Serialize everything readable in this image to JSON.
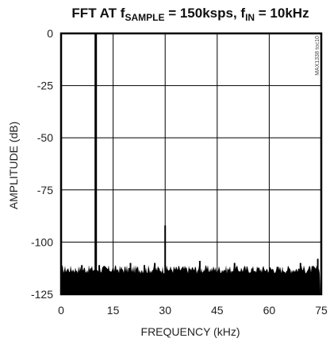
{
  "chart_data": {
    "type": "line",
    "title": "FFT AT f",
    "title_parts": [
      {
        "text": "FFT AT f",
        "style": "normal"
      },
      {
        "text": "SAMPLE",
        "style": "sub"
      },
      {
        "text": " = 150ksps, f",
        "style": "normal"
      },
      {
        "text": "IN",
        "style": "sub"
      },
      {
        "text": " = 10kHz",
        "style": "normal"
      }
    ],
    "xlabel": "FREQUENCY (kHz)",
    "ylabel": "AMPLITUDE (dB)",
    "xlim": [
      0,
      75
    ],
    "ylim": [
      -125,
      0
    ],
    "xticks": [
      "0",
      "15",
      "30",
      "45",
      "60",
      "75"
    ],
    "yticks": [
      "0",
      "-25",
      "-50",
      "-75",
      "-100",
      "-125"
    ],
    "grid": true,
    "part_number": "MAX1338 toc10",
    "noise_floor_db": -113,
    "series": [
      {
        "values_description_free": true,
        "peaks": [
          {
            "x": 10,
            "y": 0
          },
          {
            "x": 30,
            "y": -92
          },
          {
            "x": 20,
            "y": -110
          },
          {
            "x": 40,
            "y": -109
          },
          {
            "x": 50,
            "y": -110
          },
          {
            "x": 69,
            "y": -110
          },
          {
            "x": 74,
            "y": -108
          },
          {
            "x": 6,
            "y": -111
          },
          {
            "x": 11,
            "y": -111
          },
          {
            "x": 24,
            "y": -111
          },
          {
            "x": 27,
            "y": -110
          }
        ]
      }
    ]
  }
}
